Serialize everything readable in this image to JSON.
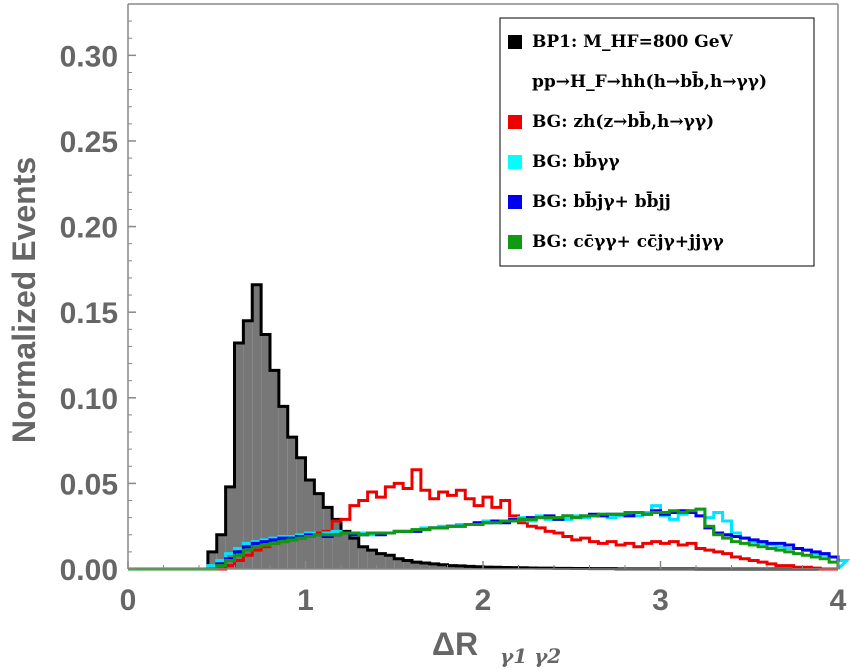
{
  "chart_data": {
    "type": "histogram",
    "xlabel": "ΔR",
    "xlabel_subscript": "γ1 γ2",
    "ylabel": "Normalized Events",
    "xlim": [
      0,
      4
    ],
    "ylim": [
      0,
      0.33
    ],
    "x_ticks": [
      "0",
      "1",
      "2",
      "3",
      "4"
    ],
    "y_ticks": [
      "0.00",
      "0.05",
      "0.10",
      "0.15",
      "0.20",
      "0.25",
      "0.30"
    ],
    "x_tick_values": [
      0,
      1,
      2,
      3,
      4
    ],
    "y_tick_values": [
      0,
      0.05,
      0.1,
      0.15,
      0.2,
      0.25,
      0.3
    ],
    "bin_width": 0.05,
    "legend_position": "top-right",
    "legend": [
      {
        "marker_color": "#000000",
        "lines": [
          "BP1: M_HF=800 GeV",
          "pp→H_F→hh(h→bb̄,h→γγ)"
        ]
      },
      {
        "marker_color": "#ee0000",
        "lines": [
          "BG: zh(z→bb̄,h→γγ)"
        ]
      },
      {
        "marker_color": "#00ffff",
        "lines": [
          "BG: bb̄γγ"
        ]
      },
      {
        "marker_color": "#0000ee",
        "lines": [
          "BG: bb̄jγ+ bb̄jj"
        ]
      },
      {
        "marker_color": "#119911",
        "lines": [
          "BG: cc̄γγ+ cc̄jγ+jjγγ"
        ]
      }
    ],
    "series": [
      {
        "name": "BP1: M_HF=800 GeV",
        "color": "#000000",
        "fill": "#777777",
        "x_start": 0.45,
        "values": [
          0.01,
          0.02,
          0.048,
          0.132,
          0.145,
          0.166,
          0.137,
          0.116,
          0.095,
          0.077,
          0.065,
          0.052,
          0.044,
          0.036,
          0.029,
          0.022,
          0.018,
          0.013,
          0.011,
          0.009,
          0.008,
          0.006,
          0.005,
          0.004,
          0.0035,
          0.003,
          0.0025,
          0.002,
          0.0018,
          0.0015,
          0.0013,
          0.0011,
          0.001,
          0.0009,
          0.0008,
          0.0007,
          0.0006,
          0.0005,
          0.0005,
          0.0004,
          0.0004,
          0.0003,
          0.0003,
          0.0002,
          0.0002,
          0.0002,
          0.0001,
          0.0001,
          0.0001,
          0.0001,
          0.0001,
          0.0001,
          0.0001,
          0.0001,
          0.0001,
          0.0,
          0.0,
          0.0,
          0.0,
          0.0,
          0.0,
          0.0,
          0.0,
          0.0,
          0.0,
          0.0,
          0.0,
          0.0,
          0.0,
          0.0,
          0.0
        ]
      },
      {
        "name": "BG: zh(z→bb̄,h→γγ)",
        "color": "#ee0000",
        "x_start": 0.55,
        "values": [
          0.002,
          0.005,
          0.008,
          0.011,
          0.013,
          0.015,
          0.016,
          0.017,
          0.018,
          0.02,
          0.021,
          0.022,
          0.028,
          0.029,
          0.037,
          0.04,
          0.045,
          0.042,
          0.048,
          0.05,
          0.047,
          0.058,
          0.046,
          0.041,
          0.045,
          0.043,
          0.046,
          0.041,
          0.037,
          0.042,
          0.036,
          0.04,
          0.031,
          0.027,
          0.025,
          0.024,
          0.022,
          0.021,
          0.019,
          0.017,
          0.018,
          0.016,
          0.015,
          0.016,
          0.014,
          0.015,
          0.013,
          0.015,
          0.016,
          0.015,
          0.016,
          0.014,
          0.015,
          0.012,
          0.011,
          0.01,
          0.009,
          0.007,
          0.006,
          0.005,
          0.004,
          0.003,
          0.002,
          0.002,
          0.001,
          0.001,
          0.0005,
          0.0,
          0.0
        ]
      },
      {
        "name": "BG: bb̄γγ",
        "color": "#00e5ff",
        "x_start": 0.45,
        "values": [
          0.002,
          0.005,
          0.009,
          0.012,
          0.015,
          0.016,
          0.017,
          0.018,
          0.019,
          0.019,
          0.02,
          0.021,
          0.02,
          0.021,
          0.022,
          0.021,
          0.02,
          0.021,
          0.02,
          0.021,
          0.021,
          0.022,
          0.022,
          0.023,
          0.024,
          0.024,
          0.025,
          0.025,
          0.026,
          0.026,
          0.027,
          0.028,
          0.027,
          0.028,
          0.029,
          0.03,
          0.028,
          0.031,
          0.029,
          0.03,
          0.029,
          0.031,
          0.03,
          0.031,
          0.032,
          0.03,
          0.031,
          0.032,
          0.031,
          0.033,
          0.037,
          0.031,
          0.029,
          0.032,
          0.034,
          0.035,
          0.03,
          0.033,
          0.028,
          0.021,
          0.018,
          0.016,
          0.015,
          0.014,
          0.013,
          0.012,
          0.012,
          0.011,
          0.009,
          0.008,
          0.007,
          0.005
        ]
      },
      {
        "name": "BG: bb̄jγ+ bb̄jj",
        "color": "#0000ee",
        "x_start": 0.5,
        "values": [
          0.003,
          0.006,
          0.01,
          0.013,
          0.015,
          0.016,
          0.017,
          0.018,
          0.018,
          0.019,
          0.02,
          0.02,
          0.019,
          0.02,
          0.021,
          0.02,
          0.02,
          0.021,
          0.02,
          0.021,
          0.022,
          0.022,
          0.022,
          0.023,
          0.024,
          0.024,
          0.025,
          0.025,
          0.026,
          0.027,
          0.027,
          0.028,
          0.027,
          0.029,
          0.029,
          0.03,
          0.03,
          0.031,
          0.029,
          0.031,
          0.03,
          0.031,
          0.032,
          0.031,
          0.032,
          0.032,
          0.031,
          0.033,
          0.032,
          0.034,
          0.032,
          0.033,
          0.034,
          0.033,
          0.031,
          0.024,
          0.021,
          0.02,
          0.019,
          0.018,
          0.017,
          0.016,
          0.015,
          0.015,
          0.014,
          0.012,
          0.011,
          0.01,
          0.009,
          0.007
        ]
      },
      {
        "name": "BG: cc̄γγ+ cc̄jγ+jjγγ",
        "color": "#119911",
        "x_start": 0.5,
        "values": [
          0.002,
          0.005,
          0.008,
          0.011,
          0.013,
          0.014,
          0.015,
          0.016,
          0.017,
          0.018,
          0.019,
          0.02,
          0.02,
          0.02,
          0.021,
          0.021,
          0.02,
          0.021,
          0.021,
          0.021,
          0.022,
          0.022,
          0.023,
          0.023,
          0.024,
          0.024,
          0.025,
          0.025,
          0.026,
          0.026,
          0.027,
          0.027,
          0.028,
          0.028,
          0.029,
          0.029,
          0.03,
          0.03,
          0.03,
          0.031,
          0.03,
          0.031,
          0.031,
          0.032,
          0.032,
          0.032,
          0.033,
          0.033,
          0.032,
          0.033,
          0.033,
          0.034,
          0.033,
          0.034,
          0.035,
          0.025,
          0.02,
          0.018,
          0.016,
          0.015,
          0.014,
          0.013,
          0.012,
          0.011,
          0.01,
          0.009,
          0.008,
          0.007,
          0.006,
          0.004
        ]
      }
    ]
  }
}
